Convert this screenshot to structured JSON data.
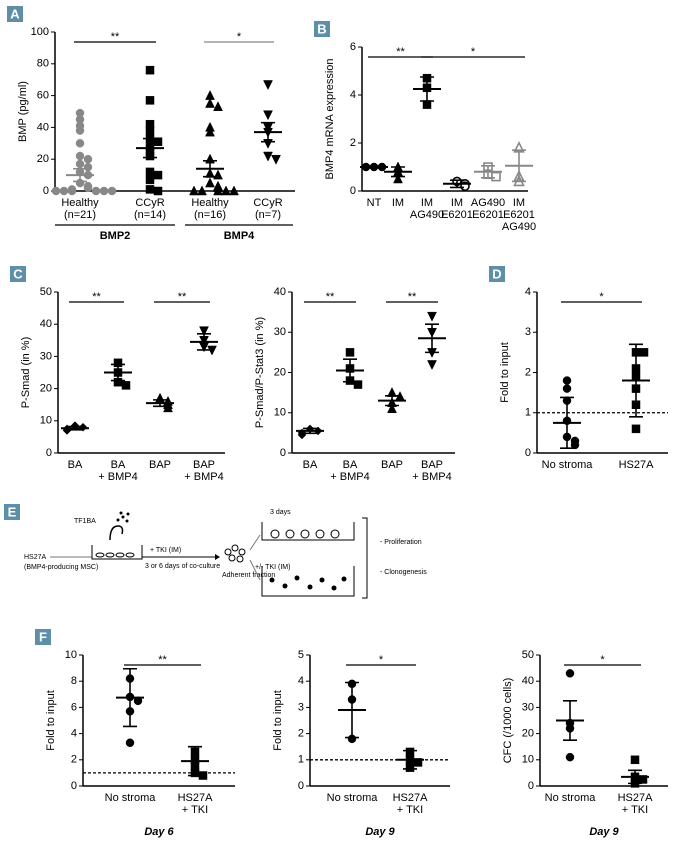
{
  "chart_data": [
    {
      "type": "dot",
      "panel": "A",
      "ylabel": "BMP (pg/ml)",
      "ylim": [
        0,
        100
      ],
      "yticks": [
        0,
        20,
        40,
        60,
        80,
        100
      ],
      "groups": [
        {
          "label": [
            "Healthy",
            "(n=21)"
          ],
          "marker": "circle",
          "color": "#888888",
          "values": [
            49,
            45,
            41,
            38,
            30,
            22,
            20,
            17,
            15,
            12,
            10,
            5,
            3,
            2,
            1,
            0,
            0,
            0,
            0,
            0,
            0
          ],
          "mean": 10,
          "error": 4
        },
        {
          "label": [
            "CCyR",
            "(n=14)"
          ],
          "marker": "square",
          "color": "#000000",
          "values": [
            76,
            57,
            42,
            38,
            33,
            31,
            28,
            25,
            22,
            12,
            10,
            7,
            1,
            0
          ],
          "mean": 27,
          "error": 6
        },
        {
          "label": [
            "Healthy",
            "(n=16)"
          ],
          "marker": "triangle",
          "color": "#000000",
          "values": [
            60,
            55,
            53,
            40,
            37,
            20,
            11,
            10,
            5,
            3,
            2,
            0,
            0,
            0,
            0,
            0
          ],
          "mean": 14,
          "error": 5
        },
        {
          "label": [
            "CCyR",
            "(n=7)"
          ],
          "marker": "triangle-down",
          "color": "#000000",
          "values": [
            67,
            48,
            40,
            37,
            30,
            22,
            20
          ],
          "mean": 37,
          "error": 6
        }
      ],
      "brackets": [
        {
          "from": 0,
          "to": 1,
          "label": "**",
          "color": "#000000"
        },
        {
          "from": 2,
          "to": 3,
          "label": "*",
          "color": "#888888"
        }
      ],
      "sections": [
        {
          "label": "BMP2",
          "from": 0,
          "to": 1
        },
        {
          "label": "BMP4",
          "from": 2,
          "to": 3
        }
      ]
    },
    {
      "type": "dot",
      "panel": "B",
      "ylabel": "BMP4 mRNA expression",
      "ylim": [
        0,
        6
      ],
      "yticks": [
        0,
        2,
        4,
        6
      ],
      "groups": [
        {
          "label": [
            "NT"
          ],
          "marker": "circle",
          "color": "#000000",
          "values": [
            1,
            1,
            1
          ],
          "mean": 1,
          "error": 0.03
        },
        {
          "label": [
            "IM"
          ],
          "marker": "triangle",
          "color": "#000000",
          "values": [
            1.0,
            0.8,
            0.5
          ],
          "mean": 0.8,
          "error": 0.2
        },
        {
          "label": [
            "IM",
            "AG490"
          ],
          "marker": "square",
          "color": "#000000",
          "values": [
            4.7,
            4.3,
            3.6
          ],
          "mean": 4.25,
          "error": 0.5
        },
        {
          "label": [
            "IM",
            "E6201"
          ],
          "marker": "circle-open",
          "color": "#000000",
          "values": [
            0.4,
            0.3,
            0.2
          ],
          "mean": 0.3,
          "error": 0.15
        },
        {
          "label": [
            "AG490",
            "E6201"
          ],
          "marker": "square-open",
          "color": "#888888",
          "values": [
            1.0,
            0.7,
            0.6
          ],
          "mean": 0.8,
          "error": 0.25
        },
        {
          "label": [
            "IM",
            "E6201",
            "AG490"
          ],
          "marker": "triangle-open",
          "color": "#888888",
          "values": [
            1.8,
            0.6,
            0.4
          ],
          "mean": 1.05,
          "error": 0.65
        }
      ],
      "brackets": [
        {
          "from": 0,
          "to": 2,
          "label": "**",
          "color": "#000000"
        },
        {
          "from": 2,
          "to": 5,
          "label": "*",
          "color": "#000000"
        }
      ]
    },
    {
      "type": "dot",
      "panel": "C",
      "ylabel": "P-Smad (in %)",
      "ylim": [
        0,
        50
      ],
      "yticks": [
        0,
        10,
        20,
        30,
        40,
        50
      ],
      "groups": [
        {
          "label": [
            "BA"
          ],
          "marker": "diamond",
          "color": "#000000",
          "values": [
            8.5,
            8,
            7.5,
            7
          ],
          "mean": 7.7,
          "error": 0.5
        },
        {
          "label": [
            "BA",
            "+ BMP4"
          ],
          "marker": "square",
          "color": "#000000",
          "values": [
            28,
            25,
            22,
            21
          ],
          "mean": 25,
          "error": 2.5
        },
        {
          "label": [
            "BAP"
          ],
          "marker": "triangle",
          "color": "#000000",
          "values": [
            17,
            16,
            15,
            14
          ],
          "mean": 15.5,
          "error": 1
        },
        {
          "label": [
            "BAP",
            "+ BMP4"
          ],
          "marker": "triangle-down",
          "color": "#000000",
          "values": [
            38,
            35,
            33,
            32
          ],
          "mean": 34.5,
          "error": 2.5
        }
      ],
      "brackets": [
        {
          "from": 0,
          "to": 1,
          "label": "**",
          "color": "#000000"
        },
        {
          "from": 2,
          "to": 3,
          "label": "**",
          "color": "#000000"
        }
      ]
    },
    {
      "type": "dot",
      "ylabel": "P-Smad/P-Stat3 (in %)",
      "ylim": [
        0,
        40
      ],
      "yticks": [
        0,
        10,
        20,
        30,
        40
      ],
      "groups": [
        {
          "label": [
            "BA"
          ],
          "marker": "diamond",
          "color": "#000000",
          "values": [
            6,
            5.5,
            5,
            4.5
          ],
          "mean": 5.5,
          "error": 0.6
        },
        {
          "label": [
            "BA",
            "+ BMP4"
          ],
          "marker": "square",
          "color": "#000000",
          "values": [
            25,
            21,
            18,
            17
          ],
          "mean": 20.5,
          "error": 2.8
        },
        {
          "label": [
            "BAP"
          ],
          "marker": "triangle",
          "color": "#000000",
          "values": [
            15,
            14,
            12.5,
            11
          ],
          "mean": 13,
          "error": 1.2
        },
        {
          "label": [
            "BAP",
            "+ BMP4"
          ],
          "marker": "triangle-down",
          "color": "#000000",
          "values": [
            34,
            30,
            25,
            22
          ],
          "mean": 28.5,
          "error": 3.5
        }
      ],
      "brackets": [
        {
          "from": 0,
          "to": 1,
          "label": "**",
          "color": "#000000"
        },
        {
          "from": 2,
          "to": 3,
          "label": "**",
          "color": "#000000"
        }
      ]
    },
    {
      "type": "dot",
      "panel": "D",
      "ylabel": "Fold to input",
      "ylim": [
        0,
        4
      ],
      "yticks": [
        0,
        1,
        2,
        3,
        4
      ],
      "refline": 1,
      "groups": [
        {
          "label": [
            "No stroma"
          ],
          "marker": "circle",
          "color": "#000000",
          "values": [
            1.8,
            1.6,
            1.3,
            0.8,
            0.4,
            0.3,
            0.2
          ],
          "mean": 0.75,
          "error": 0.63
        },
        {
          "label": [
            "HS27A"
          ],
          "marker": "square",
          "color": "#000000",
          "values": [
            2.5,
            2.5,
            2.1,
            1.9,
            1.6,
            1.2,
            0.6
          ],
          "mean": 1.8,
          "error": 0.9
        }
      ],
      "brackets": [
        {
          "from": 0,
          "to": 1,
          "label": "*",
          "color": "#000000"
        }
      ]
    },
    {
      "type": "dot",
      "panel": "F",
      "ylabel": "Fold to input",
      "xlabel": "Day 6",
      "ylim": [
        0,
        10
      ],
      "yticks": [
        0,
        2,
        4,
        6,
        8,
        10
      ],
      "refline": 1,
      "groups": [
        {
          "label": [
            "No stroma"
          ],
          "marker": "circle",
          "color": "#000000",
          "values": [
            8.2,
            6.8,
            6.5,
            5.7,
            3.3
          ],
          "mean": 6.75,
          "error": 2.2
        },
        {
          "label": [
            "HS27A",
            "+ TKI"
          ],
          "marker": "square",
          "color": "#000000",
          "values": [
            2.6,
            2.0,
            1.5,
            1.0,
            0.8
          ],
          "mean": 1.9,
          "error": 1.1
        }
      ],
      "brackets": [
        {
          "from": 0,
          "to": 1,
          "label": "**",
          "color": "#000000"
        }
      ]
    },
    {
      "type": "dot",
      "ylabel": "Fold to input",
      "xlabel": "Day 9",
      "ylim": [
        0,
        5
      ],
      "yticks": [
        0,
        1,
        2,
        3,
        4,
        5
      ],
      "refline": 1,
      "groups": [
        {
          "label": [
            "No stroma"
          ],
          "marker": "circle",
          "color": "#000000",
          "values": [
            3.9,
            3.3,
            1.8
          ],
          "mean": 2.9,
          "error": 1.05
        },
        {
          "label": [
            "HS27A",
            "+ TKI"
          ],
          "marker": "square",
          "color": "#000000",
          "values": [
            1.3,
            1.0,
            0.9,
            0.7
          ],
          "mean": 1.0,
          "error": 0.35
        }
      ],
      "brackets": [
        {
          "from": 0,
          "to": 1,
          "label": "*",
          "color": "#000000"
        }
      ]
    },
    {
      "type": "dot",
      "ylabel": "CFC (/1000 cells)",
      "xlabel": "Day 9",
      "ylim": [
        0,
        50
      ],
      "yticks": [
        0,
        10,
        20,
        30,
        40,
        50
      ],
      "groups": [
        {
          "label": [
            "No stroma"
          ],
          "marker": "circle",
          "color": "#000000",
          "values": [
            43,
            24,
            22,
            11
          ],
          "mean": 25,
          "error": 7.5
        },
        {
          "label": [
            "HS27A",
            "+ TKI"
          ],
          "marker": "square",
          "color": "#000000",
          "values": [
            10,
            3.5,
            2.5,
            1
          ],
          "mean": 3.5,
          "error": 2.5
        }
      ],
      "brackets": [
        {
          "from": 0,
          "to": 1,
          "label": "*",
          "color": "#000000"
        }
      ]
    }
  ],
  "diagram": {
    "panel": "E",
    "donor": "TF1BA",
    "stroma": "HS27A",
    "stroma_note": "(BMP4-producing MSC)",
    "treatment": "+ TKI (IM)",
    "duration": "3 or 6 days of co-culture",
    "fraction": "Adherent fraction",
    "culture": "3 days",
    "retreatment": "+/- TKI (IM)",
    "readouts": [
      "- Proliferation",
      "- Clonogenesis"
    ]
  }
}
